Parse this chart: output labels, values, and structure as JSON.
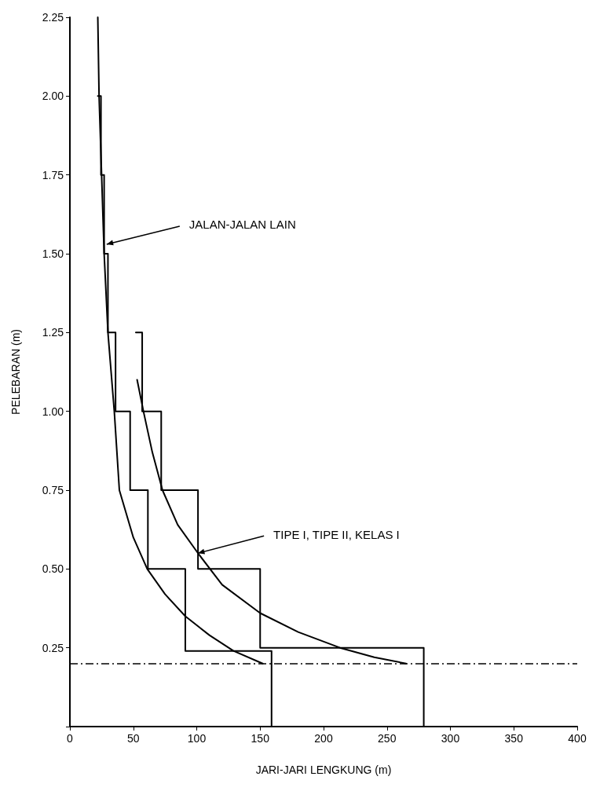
{
  "chart_data": {
    "type": "line",
    "xlabel": "JARI-JARI LENGKUNG (m)",
    "ylabel": "PELEBARAN (m)",
    "xlim": [
      0,
      400
    ],
    "xticks": [
      0,
      50,
      100,
      150,
      200,
      250,
      300,
      350,
      400
    ],
    "ylim": [
      0,
      2.25
    ],
    "yticks": [
      {
        "value": 0,
        "label": null
      },
      {
        "value": 0.25,
        "label": "0.25"
      },
      {
        "value": 0.5,
        "label": "0.50"
      },
      {
        "value": 0.75,
        "label": "0.75"
      },
      {
        "value": 1,
        "label": "1.00"
      },
      {
        "value": 1.25,
        "label": "1.25"
      },
      {
        "value": 1.5,
        "label": "1.50"
      },
      {
        "value": 1.75,
        "label": "1.75"
      },
      {
        "value": 2,
        "label": "2.00"
      },
      {
        "value": 2.25,
        "label": "2.25"
      }
    ],
    "grid": false,
    "marker": "none",
    "line_style": "solid",
    "series": [
      {
        "color": "#000000",
        "x": [
          22,
          24.5,
          24.5,
          27,
          27,
          30,
          30,
          36,
          36,
          47.5,
          47.5,
          61.5,
          61.5,
          91,
          91,
          159,
          159
        ],
        "values": [
          2,
          2,
          1.75,
          1.75,
          1.5,
          1.5,
          1.25,
          1.25,
          1,
          1,
          0.75,
          0.75,
          0.5,
          0.5,
          0.24,
          0.24,
          0
        ]
      },
      {
        "color": "#000000",
        "x": [
          52,
          57,
          57,
          72,
          72,
          101,
          101,
          150,
          150,
          279,
          279
        ],
        "values": [
          1.25,
          1.25,
          1,
          1,
          0.75,
          0.75,
          0.5,
          0.5,
          0.25,
          0.25,
          0
        ]
      },
      {
        "color": "#000000",
        "x": [
          22,
          23,
          25,
          27,
          30,
          35,
          39,
          50,
          61,
          75,
          91,
          110,
          129,
          152
        ],
        "values": [
          2.25,
          2,
          1.75,
          1.5,
          1.25,
          1,
          0.75,
          0.6,
          0.5,
          0.42,
          0.35,
          0.29,
          0.24,
          0.2
        ]
      },
      {
        "color": "#000000",
        "x": [
          53,
          58,
          65,
          73,
          85,
          101,
          120,
          150,
          180,
          213,
          240,
          265
        ],
        "values": [
          1.1,
          1,
          0.87,
          0.75,
          0.64,
          0.55,
          0.45,
          0.36,
          0.3,
          0.25,
          0.22,
          0.2
        ]
      }
    ],
    "ref_lines": [
      {
        "axis": "y",
        "value": 0.2,
        "line_style": "dashed",
        "color": "#000000"
      }
    ],
    "annotations": [
      {
        "text": "JALAN-JALAN LAIN",
        "x": 29,
        "y": 1.53
      },
      {
        "text": "TIPE I, TIPE II, KELAS I",
        "x": 101,
        "y": 0.55
      }
    ]
  }
}
